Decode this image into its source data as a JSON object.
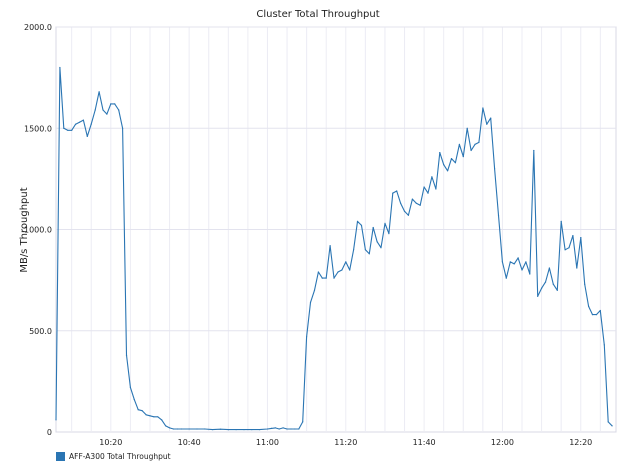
{
  "chart_data": {
    "type": "line",
    "title": "Cluster Total Throughput",
    "xlabel": "",
    "ylabel": "MB/s Throughput",
    "ylim": [
      0,
      2000
    ],
    "y_ticks": [
      0,
      500,
      1000,
      1500,
      2000
    ],
    "y_tick_labels": [
      "0",
      "500.0",
      "1000.0",
      "1500.0",
      "2000.0"
    ],
    "x_range": [
      "10:06",
      "12:29"
    ],
    "x_ticks": [
      "10:20",
      "10:40",
      "11:00",
      "11:20",
      "11:40",
      "12:00",
      "12:20"
    ],
    "grid": true,
    "legend_position": "bottom-left",
    "series": [
      {
        "name": "AFF-A300 Total Throughput",
        "color": "#2a75b3",
        "x": [
          "10:06",
          "10:07",
          "10:08",
          "10:09",
          "10:10",
          "10:11",
          "10:12",
          "10:13",
          "10:14",
          "10:15",
          "10:16",
          "10:17",
          "10:18",
          "10:19",
          "10:20",
          "10:21",
          "10:22",
          "10:23",
          "10:24",
          "10:25",
          "10:26",
          "10:27",
          "10:28",
          "10:29",
          "10:30",
          "10:31",
          "10:32",
          "10:33",
          "10:34",
          "10:35",
          "10:36",
          "10:37",
          "10:38",
          "10:40",
          "10:42",
          "10:44",
          "10:46",
          "10:48",
          "10:50",
          "10:52",
          "10:54",
          "10:56",
          "10:58",
          "11:00",
          "11:01",
          "11:02",
          "11:03",
          "11:04",
          "11:05",
          "11:06",
          "11:07",
          "11:08",
          "11:09",
          "11:10",
          "11:11",
          "11:12",
          "11:13",
          "11:14",
          "11:15",
          "11:16",
          "11:17",
          "11:18",
          "11:19",
          "11:20",
          "11:21",
          "11:22",
          "11:23",
          "11:24",
          "11:25",
          "11:26",
          "11:27",
          "11:28",
          "11:29",
          "11:30",
          "11:31",
          "11:32",
          "11:33",
          "11:34",
          "11:35",
          "11:36",
          "11:37",
          "11:38",
          "11:39",
          "11:40",
          "11:41",
          "11:42",
          "11:43",
          "11:44",
          "11:45",
          "11:46",
          "11:47",
          "11:48",
          "11:49",
          "11:50",
          "11:51",
          "11:52",
          "11:53",
          "11:54",
          "11:55",
          "11:56",
          "11:57",
          "11:58",
          "11:59",
          "12:00",
          "12:01",
          "12:02",
          "12:03",
          "12:04",
          "12:05",
          "12:06",
          "12:07",
          "12:08",
          "12:09",
          "12:10",
          "12:11",
          "12:12",
          "12:13",
          "12:14",
          "12:15",
          "12:16",
          "12:17",
          "12:18",
          "12:19",
          "12:20",
          "12:21",
          "12:22",
          "12:23",
          "12:24",
          "12:25",
          "12:26",
          "12:27",
          "12:28"
        ],
        "values": [
          60,
          1800,
          1500,
          1490,
          1490,
          1520,
          1530,
          1540,
          1460,
          1520,
          1590,
          1680,
          1590,
          1570,
          1620,
          1620,
          1590,
          1500,
          380,
          220,
          160,
          110,
          105,
          85,
          80,
          75,
          75,
          60,
          30,
          20,
          15,
          15,
          15,
          15,
          15,
          15,
          12,
          14,
          12,
          12,
          12,
          12,
          12,
          15,
          18,
          20,
          15,
          20,
          15,
          15,
          15,
          15,
          50,
          470,
          640,
          700,
          790,
          760,
          760,
          920,
          760,
          790,
          800,
          840,
          800,
          900,
          1040,
          1020,
          900,
          880,
          1010,
          940,
          910,
          1030,
          980,
          1180,
          1190,
          1130,
          1090,
          1070,
          1150,
          1130,
          1120,
          1210,
          1180,
          1260,
          1200,
          1380,
          1320,
          1290,
          1350,
          1330,
          1420,
          1360,
          1500,
          1390,
          1420,
          1430,
          1600,
          1520,
          1550,
          1300,
          1070,
          840,
          760,
          840,
          830,
          860,
          800,
          840,
          780,
          1390,
          670,
          710,
          740,
          810,
          730,
          700,
          1040,
          900,
          910,
          970,
          810,
          960,
          730,
          620,
          580,
          580,
          600,
          430,
          50,
          30
        ]
      }
    ]
  },
  "legend": {
    "label": "AFF-A300 Total Throughput",
    "color": "#2a75b3"
  }
}
